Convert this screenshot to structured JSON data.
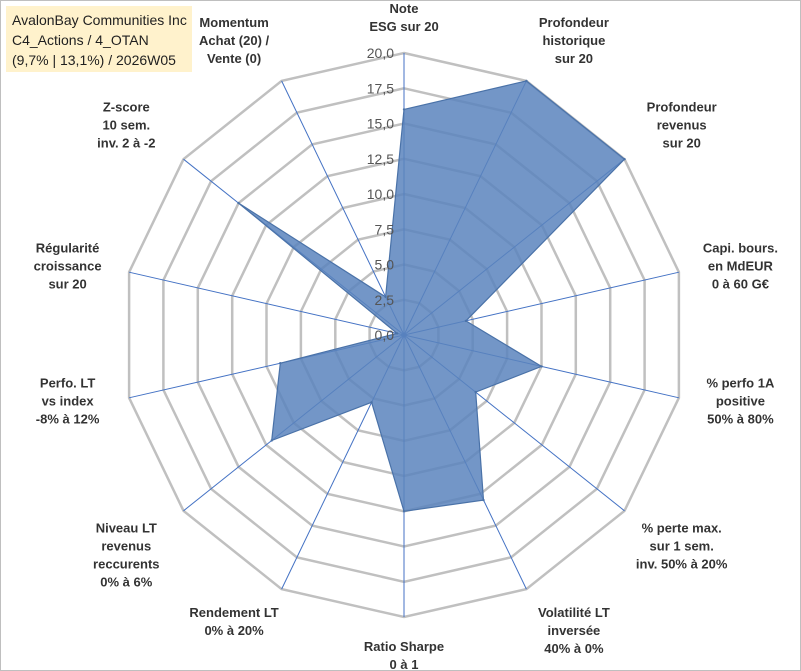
{
  "info": {
    "company": "AvalonBay Communities Inc",
    "portfolio": "C4_Actions / 4_OTAN",
    "stats": "(9,7% | 13,1%) / 2026W05"
  },
  "colors": {
    "fill": "#5b84bd",
    "stroke": "#4a72a8",
    "grid": "#c0c0c0",
    "spoke": "#4472c4",
    "box": "#fff2cc"
  },
  "chart_data": {
    "type": "radar",
    "range": [
      0,
      20
    ],
    "tick_step": 2.5,
    "tick_labels": [
      "0,0",
      "2,5",
      "5,0",
      "7,5",
      "10,0",
      "12,5",
      "15,0",
      "17,5",
      "20,0"
    ],
    "axes": [
      {
        "lines": [
          "Note",
          "ESG sur 20"
        ],
        "value": 16
      },
      {
        "lines": [
          "Profondeur",
          "historique",
          "sur 20"
        ],
        "value": 20
      },
      {
        "lines": [
          "Profondeur",
          "revenus",
          "sur 20"
        ],
        "value": 20
      },
      {
        "lines": [
          "Capi. bours.",
          "en MdEUR",
          "0 à 60 G€"
        ],
        "value": 4.5
      },
      {
        "lines": [
          "% perfo 1A",
          "positive",
          "50% à 80%"
        ],
        "value": 10
      },
      {
        "lines": [
          "% perte max.",
          "sur 1 sem.",
          "inv. 50% à 20%"
        ],
        "value": 6.5
      },
      {
        "lines": [
          "Volatilité LT",
          "inversée",
          "40% à 0%"
        ],
        "value": 13
      },
      {
        "lines": [
          "Ratio Sharpe",
          "0 à 1"
        ],
        "value": 12.5
      },
      {
        "lines": [
          "Rendement LT",
          "0% à 20%"
        ],
        "value": 5.3
      },
      {
        "lines": [
          "Niveau LT",
          "revenus",
          "reccurents",
          "0% à 6%"
        ],
        "value": 12
      },
      {
        "lines": [
          "Perfo. LT",
          "vs index",
          "-8% à 12%"
        ],
        "value": 9
      },
      {
        "lines": [
          "Régularité",
          "croissance",
          "sur 20"
        ],
        "value": 0.5
      },
      {
        "lines": [
          "Z-score",
          "10 sem.",
          "inv. 2 à -2"
        ],
        "value": 15
      },
      {
        "lines": [
          "Momentum",
          "Achat (20) /",
          "Vente (0)"
        ],
        "value": 3
      }
    ]
  }
}
